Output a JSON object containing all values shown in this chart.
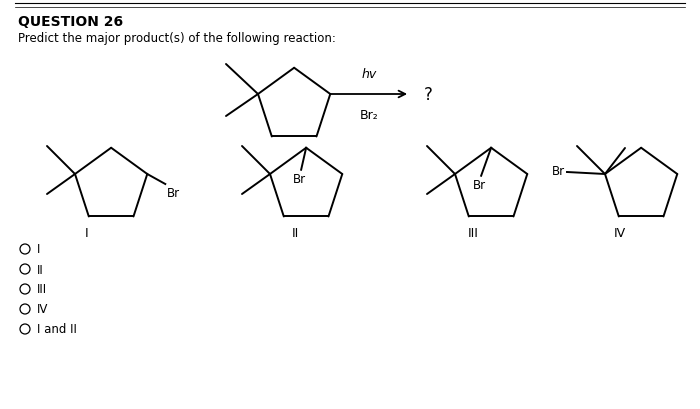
{
  "title": "QUESTION 26",
  "subtitle": "Predict the major product(s) of the following reaction:",
  "bg_color": "#ffffff",
  "text_color": "#000000",
  "question_font_size": 10,
  "subtitle_font_size": 9,
  "choices": [
    "I",
    "II",
    "III",
    "IV",
    "I and II"
  ],
  "reagent_above": "hv",
  "reagent_below": "Br₂",
  "question_mark": "?"
}
